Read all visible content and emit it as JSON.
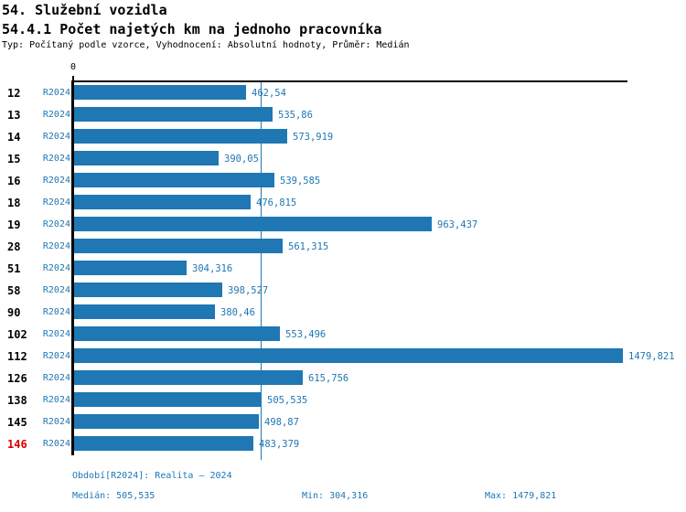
{
  "chart_data": {
    "type": "bar",
    "orientation": "horizontal",
    "title": "54. Služební vozidla",
    "subtitle": "54.4.1 Počet najetých km na jednoho pracovníka",
    "meta": "Typ: Počítaný podle vzorce, Vyhodnocení: Absolutní hodnoty, Průměr: Medián",
    "series_label": "R2024",
    "categories": [
      "12",
      "13",
      "14",
      "15",
      "16",
      "18",
      "19",
      "28",
      "51",
      "58",
      "90",
      "102",
      "112",
      "126",
      "138",
      "145",
      "146"
    ],
    "values": [
      462.54,
      535.86,
      573.919,
      390.05,
      539.585,
      476.815,
      963.437,
      561.315,
      304.316,
      398.527,
      380.46,
      553.496,
      1479.821,
      615.756,
      505.535,
      498.87,
      483.379
    ],
    "value_labels": [
      "462,54",
      "535,86",
      "573,919",
      "390,05",
      "539,585",
      "476,815",
      "963,437",
      "561,315",
      "304,316",
      "398,527",
      "380,46",
      "553,496",
      "1479,821",
      "615,756",
      "505,535",
      "498,87",
      "483,379"
    ],
    "highlighted_categories": [
      "146"
    ],
    "xlim": [
      0,
      1494
    ],
    "x_tick_labels": [
      "0"
    ],
    "median_value": 505.535,
    "grid": false,
    "legend_position": "none",
    "annotations": {
      "period": "Období[R2024]: Realita – 2024",
      "median": "Medián: 505,535",
      "min": "Min: 304,316",
      "max": "Max: 1479,821"
    }
  },
  "axis": {
    "zero_label": "0"
  },
  "colors": {
    "bar": "#1F77B4",
    "accent_text": "#1F77B4",
    "highlight_category": "#DD0000",
    "axis": "#000000",
    "background": "#FFFFFF"
  }
}
